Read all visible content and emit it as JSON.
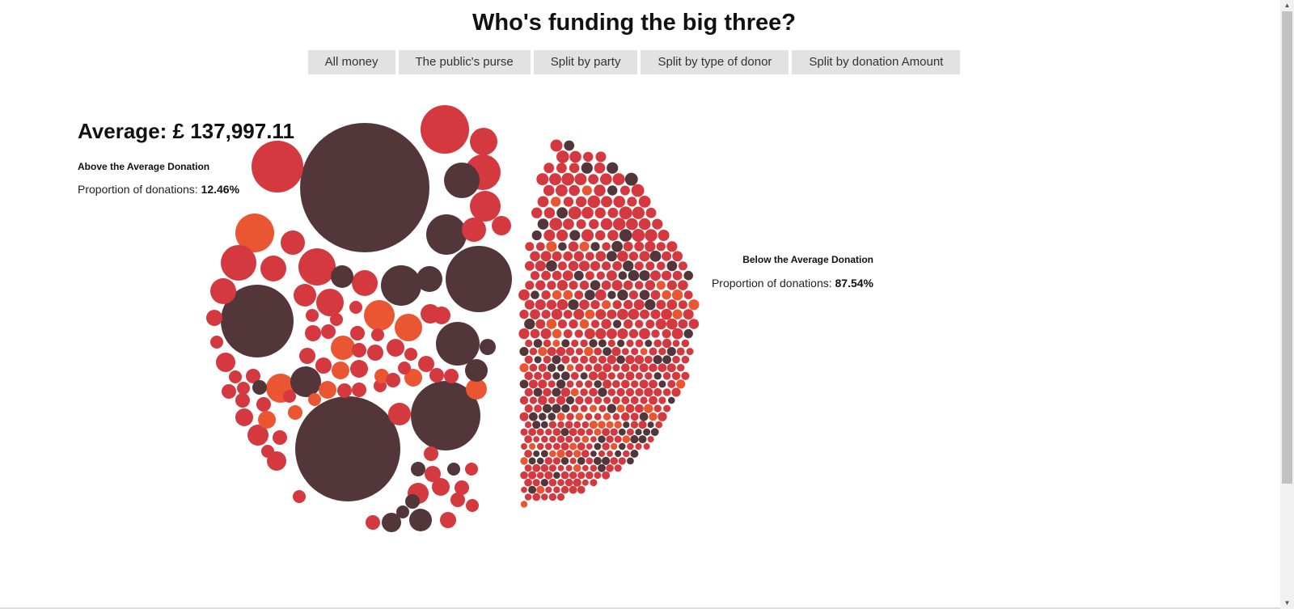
{
  "title": "Who's funding the big three?",
  "nav": {
    "buttons": [
      {
        "label": "All money"
      },
      {
        "label": "The public's purse"
      },
      {
        "label": "Split by party"
      },
      {
        "label": "Split by type of donor"
      },
      {
        "label": "Split by donation Amount"
      }
    ]
  },
  "summary": {
    "average_label": "Average: £ 137,997.11"
  },
  "groups": {
    "above": {
      "heading": "Above the Average Donation",
      "prop_label": "Proportion of donations:",
      "prop_value": "12.46%"
    },
    "below": {
      "heading": "Below the Average Donation",
      "prop_label": "Proportion of donations:",
      "prop_value": "87.54%"
    }
  },
  "colors": {
    "dark": "#52363a",
    "red": "#d3393f",
    "orange": "#e95631",
    "button_bg": "#e2e2e2"
  },
  "icons": {
    "scroll_up": "scroll-up-arrow-icon",
    "scroll_down": "scroll-down-arrow-icon"
  },
  "chart_data": {
    "type": "bubble-cluster",
    "average_donation": 137997.11,
    "groups": [
      {
        "name": "Above the Average Donation",
        "proportion": 12.46
      },
      {
        "name": "Below the Average Donation",
        "proportion": 87.54
      }
    ],
    "color_categories": [
      "dark",
      "red",
      "orange"
    ]
  }
}
